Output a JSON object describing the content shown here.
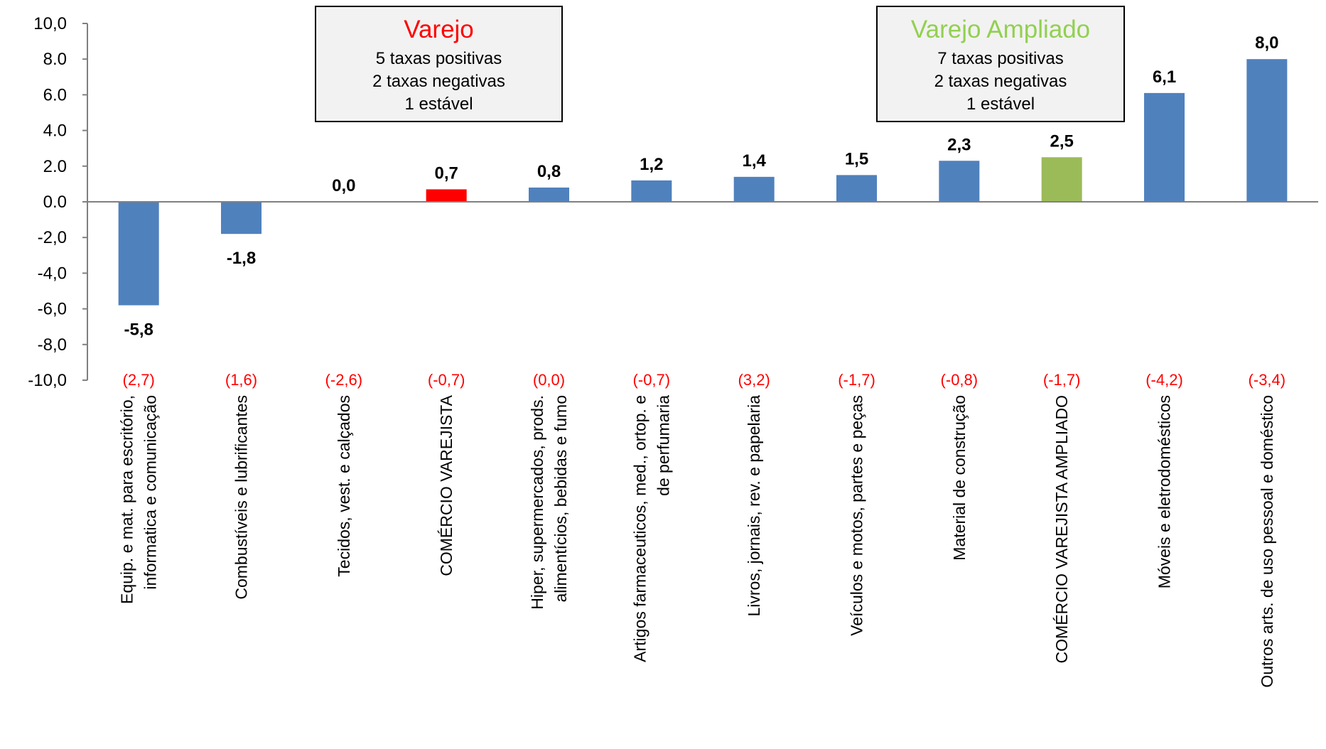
{
  "chart_data": {
    "type": "bar",
    "categories": [
      [
        "Equip. e mat. para escritório,",
        "informatica e comunicação"
      ],
      [
        "Combustíveis e lubrificantes"
      ],
      [
        "Tecidos, vest. e calçados"
      ],
      [
        "COMÉRCIO VAREJISTA"
      ],
      [
        "Hiper, supermercados, prods.",
        "alimentícios, bebidas e fumo"
      ],
      [
        "Artigos farmaceuticos, med., ortop. e",
        "de perfumaria"
      ],
      [
        "Livros, jornais, rev. e papelaria"
      ],
      [
        "Veículos e motos, partes e peças"
      ],
      [
        "Material de construção"
      ],
      [
        "COMÉRCIO VAREJISTA AMPLIADO"
      ],
      [
        "Móveis e eletrodomésticos"
      ],
      [
        "Outros arts. de uso pessoal e doméstico"
      ]
    ],
    "values": [
      -5.8,
      -1.8,
      0.0,
      0.7,
      0.8,
      1.2,
      1.4,
      1.5,
      2.3,
      2.5,
      6.1,
      8.0
    ],
    "value_labels": [
      "-5,8",
      "-1,8",
      "0,0",
      "0,7",
      "0,8",
      "1,2",
      "1,4",
      "1,5",
      "2,3",
      "2,5",
      "6,1",
      "8,0"
    ],
    "previous_labels": [
      "(2,7)",
      "(1,6)",
      "(-2,6)",
      "(-0,7)",
      "(0,0)",
      "(-0,7)",
      "(3,2)",
      "(-1,7)",
      "(-0,8)",
      "(-1,7)",
      "(-4,2)",
      "(-3,4)"
    ],
    "bar_colors": [
      "#4f81bd",
      "#4f81bd",
      "#4f81bd",
      "#ff0000",
      "#4f81bd",
      "#4f81bd",
      "#4f81bd",
      "#4f81bd",
      "#4f81bd",
      "#9bbb59",
      "#4f81bd",
      "#4f81bd"
    ],
    "ylim": [
      -10,
      10
    ],
    "yticks": [
      10,
      8,
      6,
      4,
      2,
      0,
      -2,
      -4,
      -6,
      -8,
      -10
    ],
    "ytick_labels": [
      "10,0",
      "8.0",
      "6.0",
      "4.0",
      "2.0",
      "0.0",
      "-2,0",
      "-4,0",
      "-6,0",
      "-8,0",
      "-10,0"
    ],
    "title": "",
    "xlabel": "",
    "ylabel": "",
    "grid": false,
    "annotations": [
      {
        "title": "Varejo",
        "title_color": "#ff0000",
        "lines": [
          "5 taxas positivas",
          "2 taxas negativas",
          "1 estável"
        ]
      },
      {
        "title": "Varejo Ampliado",
        "title_color": "#92d050",
        "lines": [
          "7 taxas positivas",
          "2 taxas negativas",
          "1 estável"
        ]
      }
    ]
  }
}
